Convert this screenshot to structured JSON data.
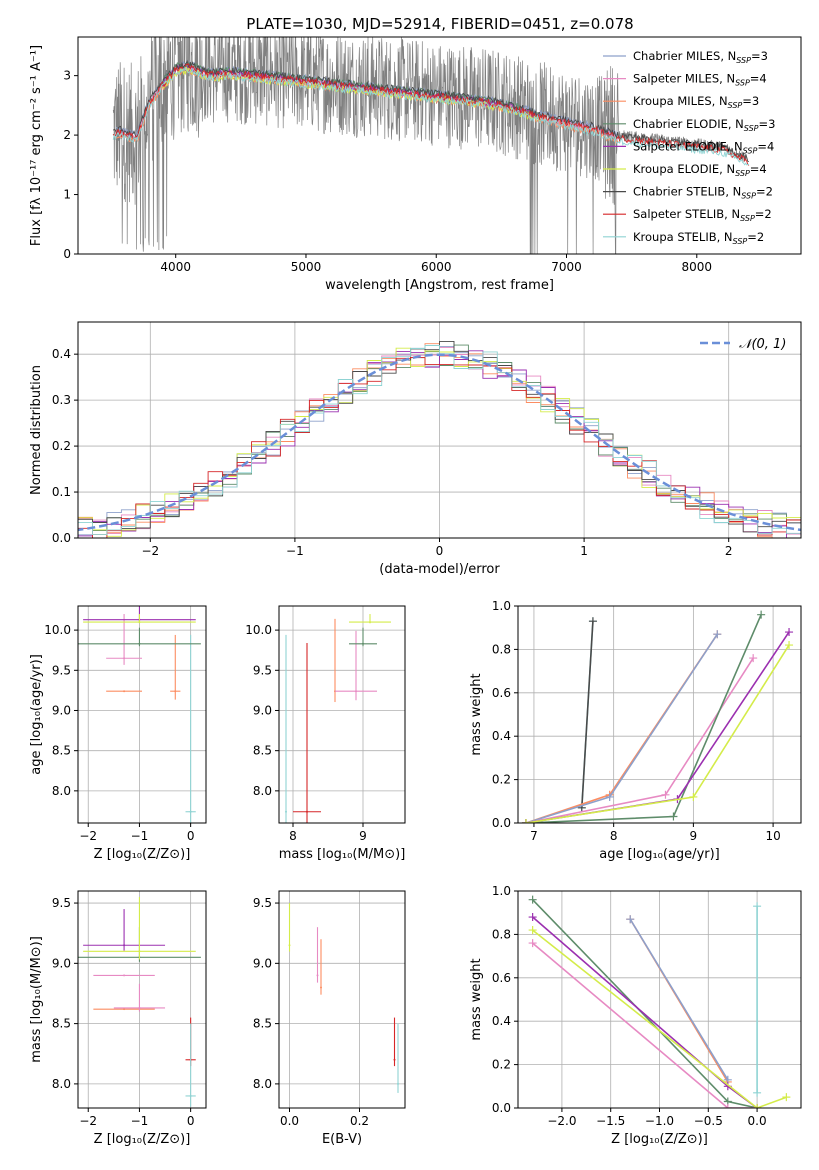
{
  "figure": {
    "title": "PLATE=1030, MJD=52914, FIBERID=0451, z=0.078"
  },
  "colors": {
    "data": "#808080",
    "gaussian": "#6a8fd8",
    "chabrier_miles": "#8da0cb",
    "salpeter_miles": "#e78ac3",
    "kroupa_miles": "#fc8d62",
    "chabrier_elodie": "#5e8c6a",
    "salpeter_elodie": "#9b30b0",
    "kroupa_elodie": "#d4ec4a",
    "chabrier_stelib": "#4a4a4a",
    "salpeter_stelib": "#d62728",
    "kroupa_stelib": "#8fd3d3"
  },
  "legend": [
    {
      "label": "Chabrier MILES, N",
      "sub": "SSP",
      "suffix": "=3",
      "color_key": "chabrier_miles"
    },
    {
      "label": "Salpeter MILES, N",
      "sub": "SSP",
      "suffix": "=4",
      "color_key": "salpeter_miles"
    },
    {
      "label": "Kroupa MILES, N",
      "sub": "SSP",
      "suffix": "=3",
      "color_key": "kroupa_miles"
    },
    {
      "label": "Chabrier ELODIE, N",
      "sub": "SSP",
      "suffix": "=3",
      "color_key": "chabrier_elodie"
    },
    {
      "label": "Salpeter ELODIE, N",
      "sub": "SSP",
      "suffix": "=4",
      "color_key": "salpeter_elodie"
    },
    {
      "label": "Kroupa ELODIE, N",
      "sub": "SSP",
      "suffix": "=4",
      "color_key": "kroupa_elodie"
    },
    {
      "label": "Chabrier STELIB, N",
      "sub": "SSP",
      "suffix": "=2",
      "color_key": "chabrier_stelib"
    },
    {
      "label": "Salpeter STELIB, N",
      "sub": "SSP",
      "suffix": "=2",
      "color_key": "salpeter_stelib"
    },
    {
      "label": "Kroupa STELIB, N",
      "sub": "SSP",
      "suffix": "=2",
      "color_key": "kroupa_stelib"
    }
  ],
  "chart_data": [
    {
      "id": "spectrum",
      "type": "line",
      "xlabel": "wavelength [Angstrom, rest frame]",
      "ylabel": "Flux [fλ 10⁻¹⁷ erg cm⁻² s⁻¹ A⁻¹]",
      "xlim": [
        3250,
        8800
      ],
      "ylim": [
        0,
        3.65
      ],
      "xticks": [
        4000,
        5000,
        6000,
        7000,
        8000
      ],
      "yticks": [
        0,
        1,
        2,
        3
      ],
      "grid": false,
      "legend_position": "top-right",
      "model_continuum": {
        "x": [
          3520,
          3560,
          3700,
          3800,
          3900,
          4000,
          4100,
          4200,
          4300,
          4400,
          4600,
          4800,
          5000,
          5200,
          5400,
          5600,
          5800,
          6000,
          6200,
          6400,
          6600,
          6800,
          7000,
          7200,
          7400,
          7600,
          7800,
          8000,
          8200,
          8400
        ],
        "y": [
          2.05,
          2.1,
          2.0,
          2.6,
          2.9,
          3.15,
          3.2,
          3.1,
          3.05,
          3.1,
          3.05,
          3.0,
          2.95,
          2.9,
          2.85,
          2.8,
          2.75,
          2.7,
          2.65,
          2.6,
          2.5,
          2.35,
          2.25,
          2.15,
          2.0,
          1.95,
          1.9,
          1.85,
          1.8,
          1.6
        ]
      }
    },
    {
      "id": "residuals",
      "type": "line",
      "xlabel": "(data-model)/error",
      "ylabel": "Normed distribution",
      "xlim": [
        -2.5,
        2.5
      ],
      "ylim": [
        0,
        0.47
      ],
      "xticks": [
        -2,
        -1,
        0,
        1,
        2
      ],
      "yticks": [
        0.0,
        0.1,
        0.2,
        0.3,
        0.4
      ],
      "grid": true,
      "legend_position": "top-right",
      "gaussian_label": "𝒩(0, 1)"
    },
    {
      "id": "age_vs_z",
      "type": "scatter",
      "xlabel": "Z [log₁₀(Z/Z⊙)]",
      "ylabel": "age  [log₁₀(age/yr)]",
      "xlim": [
        -2.2,
        0.3
      ],
      "ylim": [
        7.6,
        10.3
      ],
      "xticks": [
        -2,
        -1,
        0
      ],
      "yticks": [
        8.0,
        8.5,
        9.0,
        9.5,
        10.0
      ],
      "grid": true,
      "points": [
        {
          "x": -1.3,
          "y": 9.24,
          "xerr": 0.35,
          "yerr": 0.0,
          "color_key": "kroupa_miles"
        },
        {
          "x": -0.3,
          "y": 9.24,
          "xerr": 0.1,
          "yerr": 0.7,
          "color_key": "kroupa_miles"
        },
        {
          "x": 0.0,
          "y": 7.74,
          "xerr": 0.1,
          "yerr": 2.2,
          "color_key": "kroupa_stelib"
        },
        {
          "x": -1.3,
          "y": 9.65,
          "xerr": 0.35,
          "yerr": 0.55,
          "color_key": "salpeter_miles"
        },
        {
          "x": -1.0,
          "y": 9.83,
          "xerr": 1.2,
          "yerr": 0.2,
          "color_key": "chabrier_elodie"
        },
        {
          "x": -1.0,
          "y": 10.13,
          "xerr": 1.1,
          "yerr": 0.2,
          "color_key": "salpeter_elodie"
        },
        {
          "x": -1.0,
          "y": 10.1,
          "xerr": 1.1,
          "yerr": 0.1,
          "color_key": "kroupa_elodie"
        }
      ]
    },
    {
      "id": "age_vs_mass",
      "type": "scatter",
      "xlabel": "mass [log₁₀(M/M⊙)]",
      "ylabel": "",
      "xlim": [
        7.8,
        9.6
      ],
      "ylim": [
        7.6,
        10.3
      ],
      "xticks": [
        8,
        9
      ],
      "yticks": [
        8.0,
        8.5,
        9.0,
        9.5,
        10.0
      ],
      "grid": true,
      "points": [
        {
          "x": 7.9,
          "y": 7.74,
          "xerr": 0.0,
          "yerr": 2.2,
          "color_key": "kroupa_stelib"
        },
        {
          "x": 8.2,
          "y": 7.74,
          "xerr": 0.2,
          "yerr": 2.1,
          "color_key": "salpeter_stelib"
        },
        {
          "x": 8.6,
          "y": 9.24,
          "xerr": 0.0,
          "yerr": 0.9,
          "color_key": "kroupa_miles"
        },
        {
          "x": 8.9,
          "y": 9.24,
          "xerr": 0.3,
          "yerr": 0.75,
          "color_key": "salpeter_miles"
        },
        {
          "x": 9.0,
          "y": 9.83,
          "xerr": 0.2,
          "yerr": 0.2,
          "color_key": "chabrier_elodie"
        },
        {
          "x": 9.1,
          "y": 10.1,
          "xerr": 0.3,
          "yerr": 0.1,
          "color_key": "kroupa_elodie"
        }
      ]
    },
    {
      "id": "mass_weight_vs_age",
      "type": "line",
      "xlabel": "age  [log₁₀(age/yr)]",
      "ylabel": "mass weight",
      "xlim": [
        6.8,
        10.35
      ],
      "ylim": [
        0.0,
        1.0
      ],
      "xticks": [
        7,
        8,
        9,
        10
      ],
      "yticks": [
        0.0,
        0.2,
        0.4,
        0.6,
        0.8,
        1.0
      ],
      "grid": true,
      "series": [
        {
          "color_key": "kroupa_stelib",
          "x": [
            7.6,
            7.74
          ],
          "y": [
            0.07,
            0.93
          ]
        },
        {
          "color_key": "chabrier_stelib",
          "x": [
            7.6,
            7.74
          ],
          "y": [
            0.07,
            0.93
          ]
        },
        {
          "color_key": "kroupa_miles",
          "x": [
            6.9,
            7.95,
            9.3
          ],
          "y": [
            0.0,
            0.13,
            0.87
          ]
        },
        {
          "color_key": "chabrier_miles",
          "x": [
            6.9,
            7.95,
            9.3
          ],
          "y": [
            0.0,
            0.12,
            0.87
          ]
        },
        {
          "color_key": "salpeter_miles",
          "x": [
            6.9,
            8.65,
            9.75
          ],
          "y": [
            0.0,
            0.13,
            0.76
          ]
        },
        {
          "color_key": "chabrier_elodie",
          "x": [
            6.9,
            8.75,
            9.85
          ],
          "y": [
            0.0,
            0.03,
            0.96
          ]
        },
        {
          "color_key": "salpeter_elodie",
          "x": [
            6.9,
            8.8,
            10.2
          ],
          "y": [
            0.0,
            0.11,
            0.88
          ]
        },
        {
          "color_key": "kroupa_elodie",
          "x": [
            6.9,
            9.0,
            10.2
          ],
          "y": [
            0.0,
            0.12,
            0.82
          ]
        }
      ]
    },
    {
      "id": "mass_vs_z",
      "type": "scatter",
      "xlabel": "Z [log₁₀(Z/Z⊙)]",
      "ylabel": "mass [log₁₀(M/M⊙)]",
      "xlim": [
        -2.2,
        0.3
      ],
      "ylim": [
        7.8,
        9.6
      ],
      "xticks": [
        -2,
        -1,
        0
      ],
      "yticks": [
        8.0,
        8.5,
        9.0,
        9.5
      ],
      "grid": true,
      "points": [
        {
          "x": -1.3,
          "y": 8.62,
          "xerr": 0.6,
          "yerr": 0.0,
          "color_key": "kroupa_miles"
        },
        {
          "x": -1.0,
          "y": 8.63,
          "xerr": 0.5,
          "yerr": 0.2,
          "color_key": "salpeter_miles"
        },
        {
          "x": -1.3,
          "y": 8.9,
          "xerr": 0.6,
          "yerr": 0.0,
          "color_key": "salpeter_miles"
        },
        {
          "x": -1.3,
          "y": 9.15,
          "xerr": 0.8,
          "yerr": 0.3,
          "color_key": "salpeter_elodie"
        },
        {
          "x": -1.0,
          "y": 9.05,
          "xerr": 1.2,
          "yerr": 0.25,
          "color_key": "chabrier_elodie"
        },
        {
          "x": -1.0,
          "y": 9.1,
          "xerr": 1.1,
          "yerr": 0.45,
          "color_key": "kroupa_elodie"
        },
        {
          "x": 0.0,
          "y": 8.2,
          "xerr": 0.1,
          "yerr": 0.35,
          "color_key": "salpeter_stelib"
        },
        {
          "x": 0.0,
          "y": 7.9,
          "xerr": 0.1,
          "yerr": 0.6,
          "color_key": "kroupa_stelib"
        }
      ]
    },
    {
      "id": "mass_vs_ebv",
      "type": "scatter",
      "xlabel": "E(B-V)",
      "ylabel": "",
      "xlim": [
        -0.03,
        0.33
      ],
      "ylim": [
        7.8,
        9.6
      ],
      "xticks": [
        0.0,
        0.2
      ],
      "yticks": [
        8.0,
        8.5,
        9.0,
        9.5
      ],
      "grid": true,
      "points": [
        {
          "x": 0.0,
          "y": 9.15,
          "xerr": 0.0,
          "yerr": 0.35,
          "color_key": "kroupa_elodie"
        },
        {
          "x": 0.08,
          "y": 8.9,
          "xerr": 0.0,
          "yerr": 0.4,
          "color_key": "salpeter_miles"
        },
        {
          "x": 0.09,
          "y": 8.8,
          "xerr": 0.0,
          "yerr": 0.4,
          "color_key": "kroupa_miles"
        },
        {
          "x": 0.3,
          "y": 8.2,
          "xerr": 0.0,
          "yerr": 0.35,
          "color_key": "salpeter_stelib"
        },
        {
          "x": 0.31,
          "y": 8.0,
          "xerr": 0.0,
          "yerr": 0.5,
          "color_key": "kroupa_stelib"
        }
      ]
    },
    {
      "id": "mass_weight_vs_z",
      "type": "line",
      "xlabel": "Z [log₁₀(Z/Z⊙)]",
      "ylabel": "mass weight",
      "xlim": [
        -2.45,
        0.45
      ],
      "ylim": [
        0.0,
        1.0
      ],
      "xticks": [
        -2.0,
        -1.5,
        -1.0,
        -0.5,
        0.0
      ],
      "yticks": [
        0.0,
        0.2,
        0.4,
        0.6,
        0.8,
        1.0
      ],
      "grid": true,
      "series": [
        {
          "color_key": "kroupa_stelib",
          "x": [
            0.0,
            0.0
          ],
          "y": [
            0.07,
            0.93
          ]
        },
        {
          "color_key": "kroupa_miles",
          "x": [
            -1.3,
            -0.3
          ],
          "y": [
            0.87,
            0.12
          ]
        },
        {
          "color_key": "chabrier_miles",
          "x": [
            -1.3,
            -0.3
          ],
          "y": [
            0.87,
            0.13
          ]
        },
        {
          "color_key": "chabrier_elodie",
          "x": [
            -2.3,
            -0.3,
            0.0
          ],
          "y": [
            0.96,
            0.03,
            0.0
          ]
        },
        {
          "color_key": "salpeter_elodie",
          "x": [
            -2.3,
            -0.3,
            0.0
          ],
          "y": [
            0.88,
            0.1,
            0.0
          ]
        },
        {
          "color_key": "salpeter_miles",
          "x": [
            -2.3,
            -0.3,
            0.0
          ],
          "y": [
            0.76,
            0.0,
            0.0
          ]
        },
        {
          "color_key": "kroupa_elodie",
          "x": [
            -2.3,
            0.0,
            0.3
          ],
          "y": [
            0.82,
            0.0,
            0.05
          ]
        }
      ]
    }
  ]
}
